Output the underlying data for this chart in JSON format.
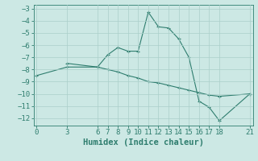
{
  "series1_x": [
    0,
    3,
    6,
    7,
    8,
    9,
    10,
    11,
    12,
    13,
    14,
    15,
    16,
    17,
    18,
    21
  ],
  "series1_y": [
    -8.5,
    -7.8,
    -7.8,
    -8.0,
    -8.2,
    -8.5,
    -8.7,
    -9.0,
    -9.1,
    -9.3,
    -9.5,
    -9.7,
    -9.9,
    -10.1,
    -10.2,
    -10.0
  ],
  "series2_x": [
    3,
    6,
    7,
    8,
    9,
    10,
    11,
    12,
    13,
    14,
    15,
    16,
    17,
    18,
    21
  ],
  "series2_y": [
    -7.5,
    -7.8,
    -6.8,
    -6.2,
    -6.5,
    -6.5,
    -3.3,
    -4.5,
    -4.6,
    -5.5,
    -7.0,
    -10.6,
    -11.1,
    -12.2,
    -10.0
  ],
  "line_color": "#2e7d6e",
  "bg_color": "#cce8e4",
  "grid_color": "#aacfca",
  "xlabel": "Humidex (Indice chaleur)",
  "xticks": [
    0,
    3,
    6,
    7,
    8,
    9,
    10,
    11,
    12,
    13,
    14,
    15,
    16,
    17,
    18,
    21
  ],
  "yticks": [
    -3,
    -4,
    -5,
    -6,
    -7,
    -8,
    -9,
    -10,
    -11,
    -12
  ],
  "xlim": [
    -0.3,
    21.3
  ],
  "ylim": [
    -12.6,
    -2.7
  ],
  "tick_fontsize": 6.5,
  "label_fontsize": 7.5
}
